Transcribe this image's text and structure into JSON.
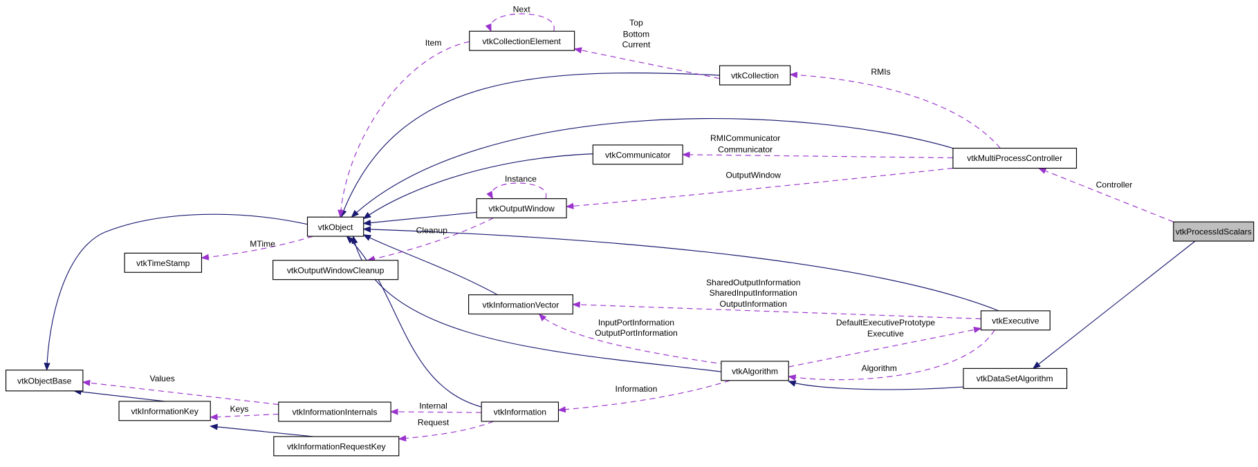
{
  "colors": {
    "inheritance": "#191970",
    "usage": "#9a32cd",
    "focus_fill": "#bfbfbf"
  },
  "nodes": {
    "collection_element": "vtkCollectionElement",
    "collection": "vtkCollection",
    "multi_process_controller": "vtkMultiProcessController",
    "communicator": "vtkCommunicator",
    "output_window": "vtkOutputWindow",
    "object": "vtkObject",
    "process_id_scalars": "vtkProcessIdScalars",
    "time_stamp": "vtkTimeStamp",
    "output_window_cleanup": "vtkOutputWindowCleanup",
    "information_vector": "vtkInformationVector",
    "executive": "vtkExecutive",
    "object_base": "vtkObjectBase",
    "algorithm": "vtkAlgorithm",
    "data_set_algorithm": "vtkDataSetAlgorithm",
    "information_internals": "vtkInformationInternals",
    "information_key": "vtkInformationKey",
    "information": "vtkInformation",
    "information_request_key": "vtkInformationRequestKey"
  },
  "edge_labels": {
    "next": "Next",
    "item": "Item",
    "top": "Top",
    "bottom": "Bottom",
    "current": "Current",
    "rmis": "RMIs",
    "rmi_communicator": "RMICommunicator",
    "communicator": "Communicator",
    "output_window": "OutputWindow",
    "controller": "Controller",
    "instance": "Instance",
    "mtime": "MTime",
    "cleanup": "Cleanup",
    "shared_output_information": "SharedOutputInformation",
    "shared_input_information": "SharedInputInformation",
    "output_information": "OutputInformation",
    "input_port_information": "InputPortInformation",
    "output_port_information": "OutputPortInformation",
    "default_executive_prototype": "DefaultExecutivePrototype",
    "executive": "Executive",
    "algorithm": "Algorithm",
    "information": "Information",
    "values": "Values",
    "keys": "Keys",
    "internal": "Internal",
    "request": "Request"
  }
}
